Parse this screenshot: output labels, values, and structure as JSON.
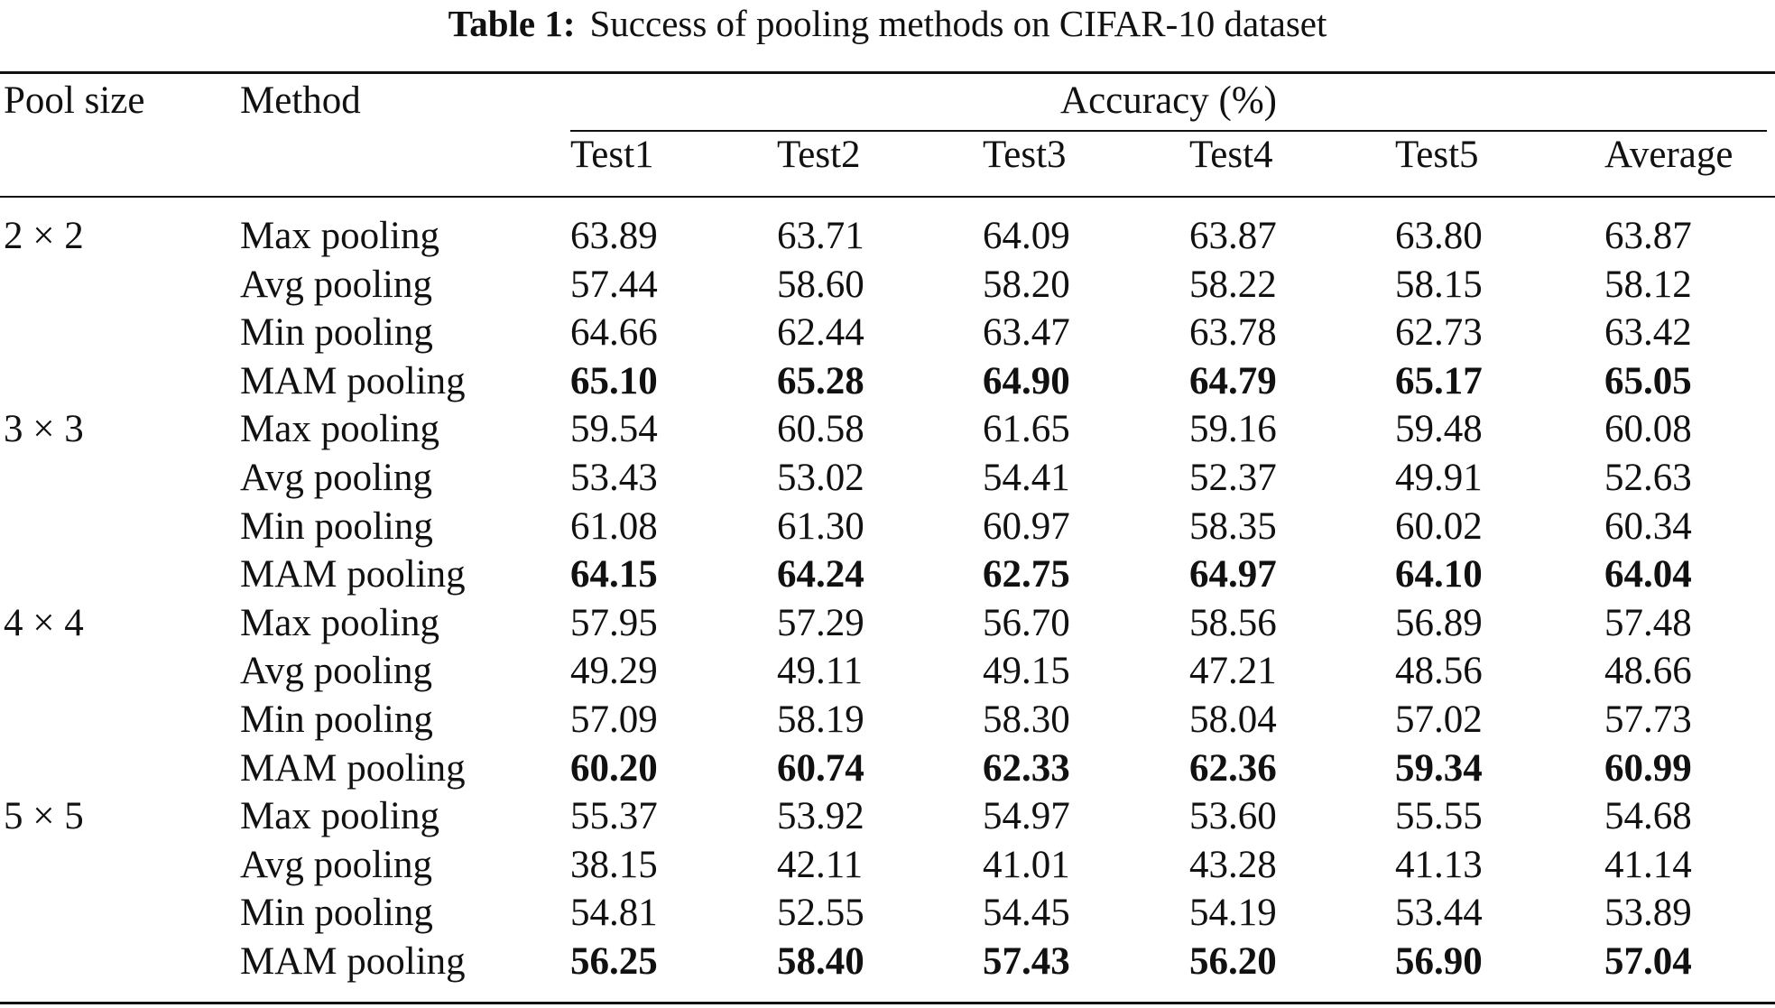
{
  "caption": {
    "label": "Table 1:",
    "text": "Success of pooling methods on CIFAR-10 dataset"
  },
  "headers": {
    "pool_size": "Pool size",
    "method": "Method",
    "accuracy": "Accuracy (%)",
    "tests": [
      "Test1",
      "Test2",
      "Test3",
      "Test4",
      "Test5",
      "Average"
    ]
  },
  "groups": [
    {
      "pool_size": "2 × 2",
      "rows": [
        {
          "method": "Max pooling",
          "values": [
            "63.89",
            "63.71",
            "64.09",
            "63.87",
            "63.80",
            "63.87"
          ],
          "bold": false
        },
        {
          "method": "Avg pooling",
          "values": [
            "57.44",
            "58.60",
            "58.20",
            "58.22",
            "58.15",
            "58.12"
          ],
          "bold": false
        },
        {
          "method": "Min pooling",
          "values": [
            "64.66",
            "62.44",
            "63.47",
            "63.78",
            "62.73",
            "63.42"
          ],
          "bold": false
        },
        {
          "method": "MAM pooling",
          "values": [
            "65.10",
            "65.28",
            "64.90",
            "64.79",
            "65.17",
            "65.05"
          ],
          "bold": true
        }
      ]
    },
    {
      "pool_size": "3 × 3",
      "rows": [
        {
          "method": "Max pooling",
          "values": [
            "59.54",
            "60.58",
            "61.65",
            "59.16",
            "59.48",
            "60.08"
          ],
          "bold": false
        },
        {
          "method": "Avg pooling",
          "values": [
            "53.43",
            "53.02",
            "54.41",
            "52.37",
            "49.91",
            "52.63"
          ],
          "bold": false
        },
        {
          "method": "Min pooling",
          "values": [
            "61.08",
            "61.30",
            "60.97",
            "58.35",
            "60.02",
            "60.34"
          ],
          "bold": false
        },
        {
          "method": "MAM pooling",
          "values": [
            "64.15",
            "64.24",
            "62.75",
            "64.97",
            "64.10",
            "64.04"
          ],
          "bold": true
        }
      ]
    },
    {
      "pool_size": "4 × 4",
      "rows": [
        {
          "method": "Max pooling",
          "values": [
            "57.95",
            "57.29",
            "56.70",
            "58.56",
            "56.89",
            "57.48"
          ],
          "bold": false
        },
        {
          "method": "Avg pooling",
          "values": [
            "49.29",
            "49.11",
            "49.15",
            "47.21",
            "48.56",
            "48.66"
          ],
          "bold": false
        },
        {
          "method": "Min pooling",
          "values": [
            "57.09",
            "58.19",
            "58.30",
            "58.04",
            "57.02",
            "57.73"
          ],
          "bold": false
        },
        {
          "method": "MAM pooling",
          "values": [
            "60.20",
            "60.74",
            "62.33",
            "62.36",
            "59.34",
            "60.99"
          ],
          "bold": true
        }
      ]
    },
    {
      "pool_size": "5 × 5",
      "rows": [
        {
          "method": "Max pooling",
          "values": [
            "55.37",
            "53.92",
            "54.97",
            "53.60",
            "55.55",
            "54.68"
          ],
          "bold": false
        },
        {
          "method": "Avg pooling",
          "values": [
            "38.15",
            "42.11",
            "41.01",
            "43.28",
            "41.13",
            "41.14"
          ],
          "bold": false
        },
        {
          "method": "Min pooling",
          "values": [
            "54.81",
            "52.55",
            "54.45",
            "54.19",
            "53.44",
            "53.89"
          ],
          "bold": false
        },
        {
          "method": "MAM pooling",
          "values": [
            "56.25",
            "58.40",
            "57.43",
            "56.20",
            "56.90",
            "57.04"
          ],
          "bold": true
        }
      ]
    }
  ]
}
